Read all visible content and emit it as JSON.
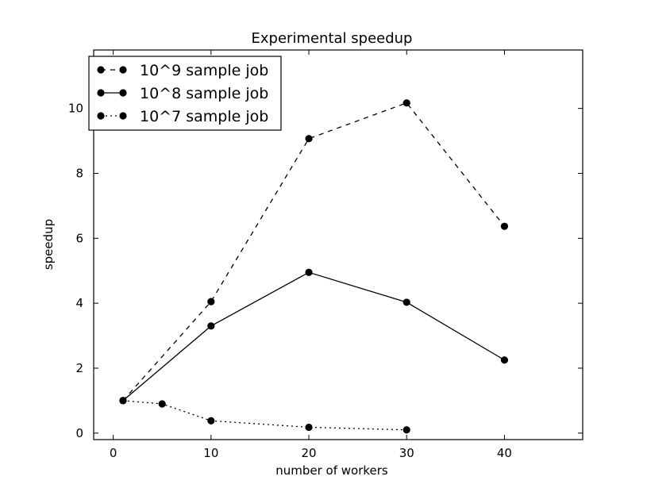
{
  "chart_data": {
    "type": "line",
    "title": "Experimental speedup",
    "xlabel": "number of workers",
    "ylabel": "speedup",
    "xlim": [
      -2,
      48
    ],
    "ylim": [
      -0.2,
      11.8
    ],
    "xticks": [
      0,
      10,
      20,
      30,
      40
    ],
    "yticks": [
      0,
      2,
      4,
      6,
      8,
      10
    ],
    "grid": false,
    "legend_position": "top-left",
    "series": [
      {
        "name": "10^9 sample job",
        "line_style": "dashed",
        "color": "#000000",
        "x": [
          1,
          10,
          20,
          30,
          40
        ],
        "y": [
          1.0,
          4.05,
          9.07,
          10.17,
          6.37
        ]
      },
      {
        "name": "10^8 sample job",
        "line_style": "solid",
        "color": "#000000",
        "x": [
          1,
          10,
          20,
          30,
          40
        ],
        "y": [
          1.0,
          3.3,
          4.95,
          4.03,
          2.25
        ]
      },
      {
        "name": "10^7 sample job",
        "line_style": "dotted",
        "color": "#000000",
        "x": [
          1,
          5,
          10,
          20,
          30
        ],
        "y": [
          1.0,
          0.9,
          0.38,
          0.18,
          0.1
        ]
      }
    ]
  }
}
